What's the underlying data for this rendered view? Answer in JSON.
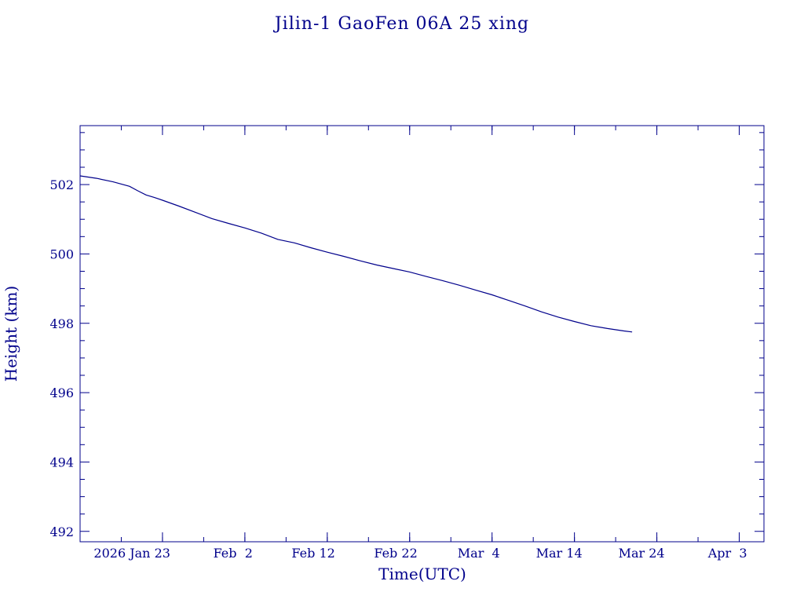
{
  "chart_data": {
    "type": "line",
    "title": "Jilin-1 GaoFen 06A 25 xing",
    "xlabel": "Time(UTC)",
    "ylabel": "Height (km)",
    "color": "#00008b",
    "grid": false,
    "xlim": [
      "2026-01-13",
      "2026-04-06"
    ],
    "ylim": [
      491.7,
      503.7
    ],
    "x_ticks": [
      {
        "date": "2026-01-23",
        "label": "2026 Jan 23"
      },
      {
        "date": "2026-02-02",
        "label": "Feb  2"
      },
      {
        "date": "2026-02-12",
        "label": "Feb 12"
      },
      {
        "date": "2026-02-22",
        "label": "Feb 22"
      },
      {
        "date": "2026-03-04",
        "label": "Mar  4"
      },
      {
        "date": "2026-03-14",
        "label": "Mar 14"
      },
      {
        "date": "2026-03-24",
        "label": "Mar 24"
      },
      {
        "date": "2026-04-03",
        "label": "Apr  3"
      }
    ],
    "y_ticks": [
      {
        "value": 492,
        "label": "492"
      },
      {
        "value": 494,
        "label": "494"
      },
      {
        "value": 496,
        "label": "496"
      },
      {
        "value": 498,
        "label": "498"
      },
      {
        "value": 500,
        "label": "500"
      },
      {
        "value": 502,
        "label": "502"
      }
    ],
    "series": [
      {
        "x": [
          "2026-01-13",
          "2026-01-15",
          "2026-01-17",
          "2026-01-19",
          "2026-01-20",
          "2026-01-21",
          "2026-01-22",
          "2026-01-23",
          "2026-01-25",
          "2026-01-27",
          "2026-01-29",
          "2026-01-31",
          "2026-02-02",
          "2026-02-04",
          "2026-02-06",
          "2026-02-08",
          "2026-02-10",
          "2026-02-12",
          "2026-02-14",
          "2026-02-16",
          "2026-02-18",
          "2026-02-20",
          "2026-02-22",
          "2026-02-24",
          "2026-02-26",
          "2026-02-28",
          "2026-03-02",
          "2026-03-04",
          "2026-03-06",
          "2026-03-08",
          "2026-03-10",
          "2026-03-12",
          "2026-03-14",
          "2026-03-16",
          "2026-03-18",
          "2026-03-20",
          "2026-03-21"
        ],
        "y": [
          502.25,
          502.18,
          502.08,
          501.95,
          501.82,
          501.7,
          501.63,
          501.55,
          501.38,
          501.2,
          501.02,
          500.88,
          500.75,
          500.6,
          500.42,
          500.32,
          500.18,
          500.05,
          499.93,
          499.8,
          499.68,
          499.58,
          499.48,
          499.35,
          499.23,
          499.1,
          498.96,
          498.82,
          498.66,
          498.5,
          498.33,
          498.18,
          498.05,
          497.93,
          497.85,
          497.78,
          497.75
        ]
      }
    ]
  }
}
